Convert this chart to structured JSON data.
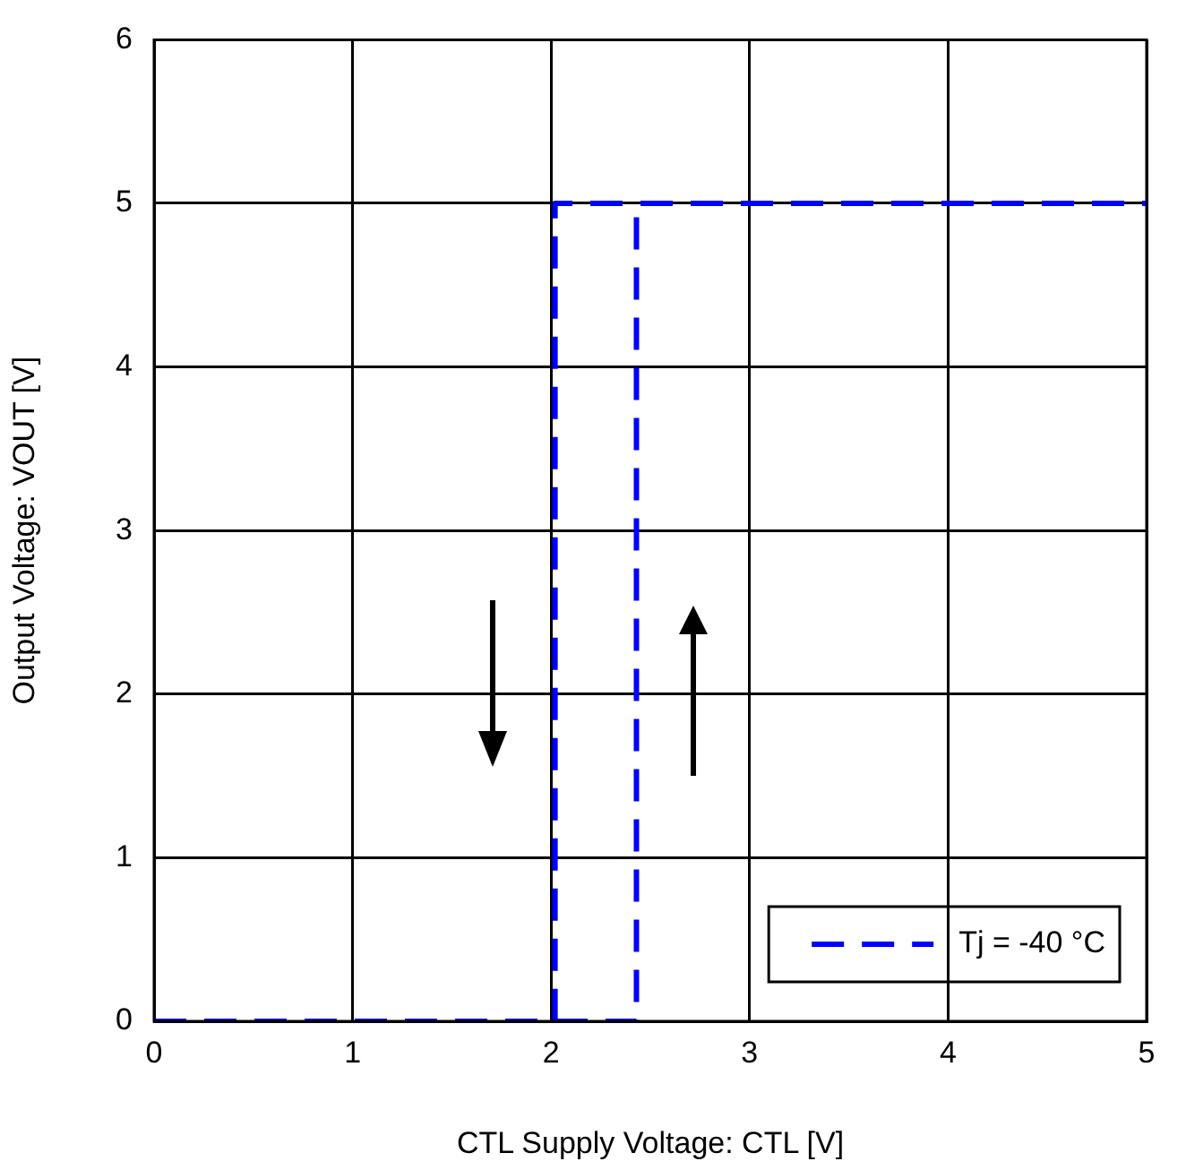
{
  "chart_data": {
    "type": "line",
    "xlabel": "CTL Supply Voltage: CTL [V]",
    "ylabel": "Output Voltage: VOUT [V]",
    "series": [
      {
        "name": "Tj = -40 °C",
        "color": "#0000ff",
        "x": [
          0,
          2.43,
          2.43,
          5
        ],
        "values": [
          0,
          0,
          5,
          5
        ]
      },
      {
        "color": "#0000ff",
        "x": [
          0,
          2.02,
          2.02,
          5
        ],
        "values": [
          0,
          0,
          5,
          5
        ]
      }
    ],
    "xlim": [
      0,
      5
    ],
    "xticks": [
      0,
      1,
      2,
      3,
      4,
      5
    ],
    "ylim": [
      0,
      6
    ],
    "yticks": [
      0,
      1,
      2,
      3,
      4,
      5,
      6
    ],
    "grid": true,
    "legend": "bottom right",
    "line_style": "dashed",
    "marker": "none"
  }
}
